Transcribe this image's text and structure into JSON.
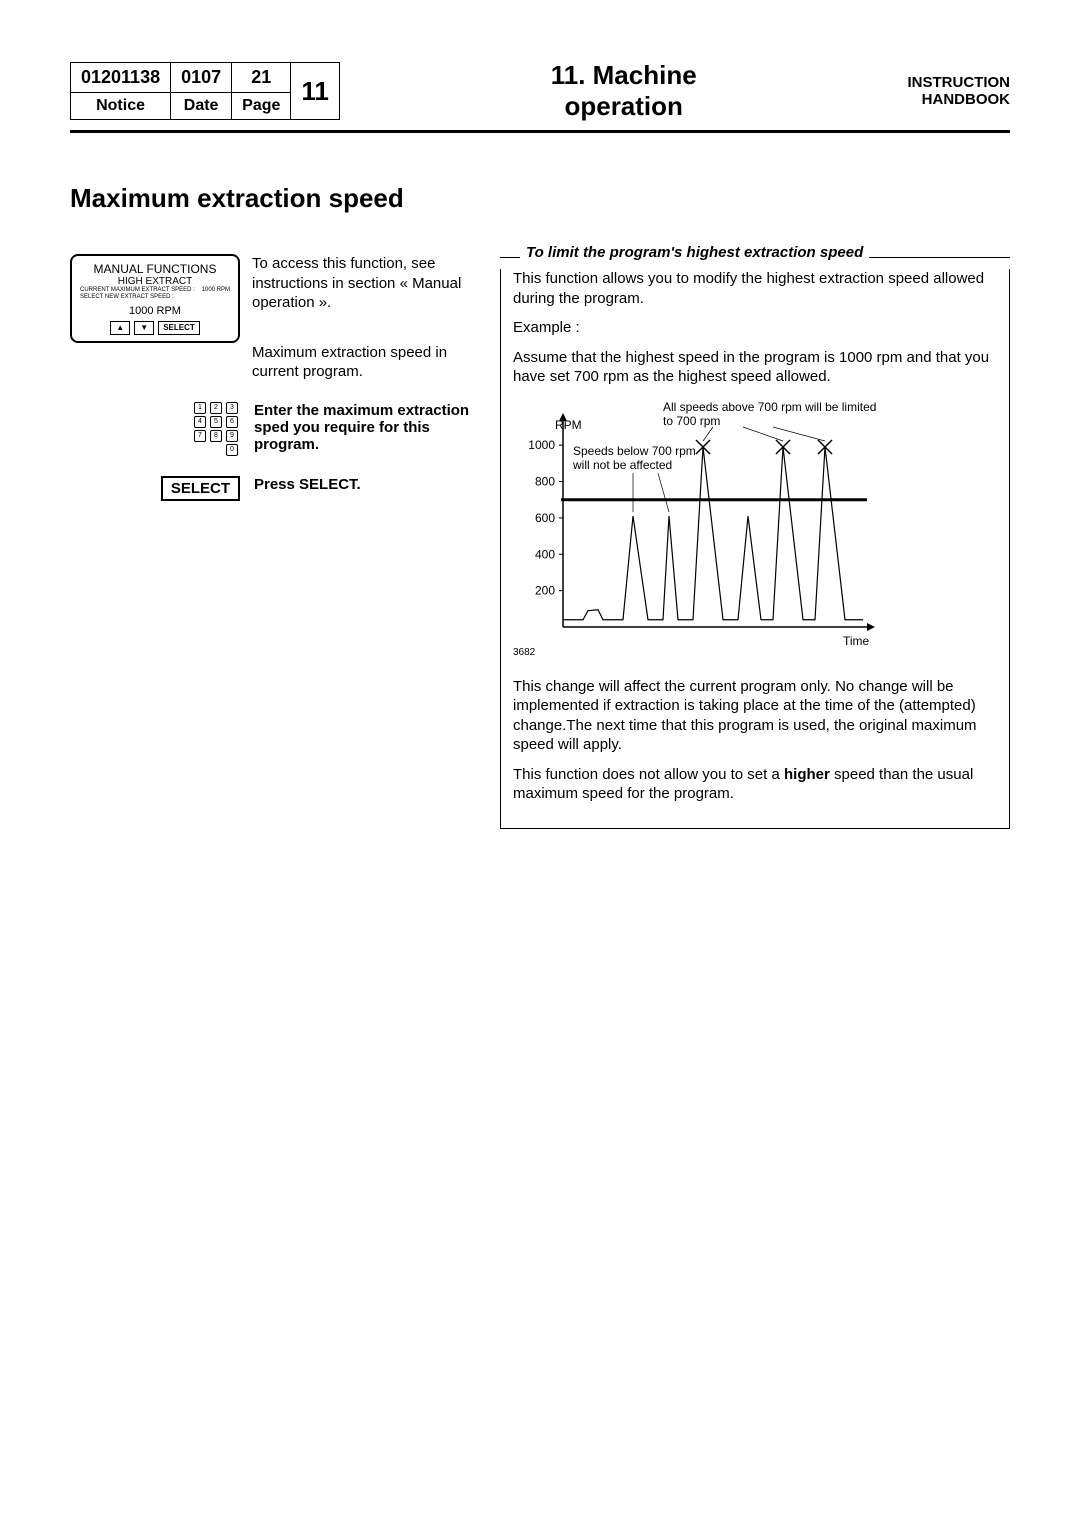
{
  "header": {
    "notice_num": "01201138",
    "date": "0107",
    "page": "21",
    "chapter_num": "11",
    "notice_lbl": "Notice",
    "date_lbl": "Date",
    "page_lbl": "Page",
    "title_line1": "11. Machine",
    "title_line2": "operation",
    "right1": "INSTRUCTION",
    "right2": "HANDBOOK"
  },
  "section_title": "Maximum extraction speed",
  "lcd": {
    "title": "MANUAL FUNCTIONS",
    "sub": "HIGH EXTRACT",
    "line1a": "CURRENT MAXIMUM EXTRACT SPEED :",
    "line1b": "1000 RPM",
    "line2": "SELECT NEW EXTRACT SPEED :",
    "value": "1000 RPM",
    "select": "SELECT"
  },
  "left_p1": "To access this function, see instructions in section « Manual operation ».",
  "left_p2": "Maximum extraction speed in current program.",
  "step2": "Enter the maximum extraction  sped you require  for this program.",
  "select_btn": "SELECT",
  "step3": "Press SELECT.",
  "right": {
    "legend": "To limit the program's highest extraction speed",
    "p1": "This function allows you to modify the highest extraction speed allowed during the program.",
    "p2": "Example :",
    "p3": "Assume that the highest speed in the program is 1000 rpm and that you have set 700 rpm as the highest speed allowed.",
    "p4a": "This change will affect the current program only. No change will be implemented if extraction is taking place at the time of the (attempted) change.The next time that this program is used, the original maximum speed will apply.",
    "p5a": "This function does not allow you to set a ",
    "p5b": "higher",
    "p5c": " speed than the usual maximum speed for the program."
  },
  "chart": {
    "type": "line",
    "ylabel": "RPM",
    "xlabel": "Time",
    "yticks": [
      200,
      400,
      600,
      800,
      1000
    ],
    "ylim": [
      0,
      1100
    ],
    "fig_num": "3682",
    "callout_top": "All speeds above 700 rpm  will be limited to 700 rpm",
    "callout_left": "Speeds below 700 rpm will not be affected",
    "limit_line_y": 700,
    "axis_color": "#000000",
    "line_color": "#000000",
    "limit_color": "#000000",
    "font_size_labels": 12,
    "points": [
      [
        0,
        40
      ],
      [
        20,
        40
      ],
      [
        25,
        90
      ],
      [
        35,
        95
      ],
      [
        40,
        40
      ],
      [
        60,
        40
      ],
      [
        70,
        610
      ],
      [
        85,
        40
      ],
      [
        100,
        40
      ],
      [
        106,
        610
      ],
      [
        115,
        40
      ],
      [
        130,
        40
      ],
      [
        140,
        990
      ],
      [
        160,
        40
      ],
      [
        175,
        40
      ],
      [
        185,
        610
      ],
      [
        198,
        40
      ],
      [
        210,
        40
      ],
      [
        220,
        990
      ],
      [
        240,
        40
      ],
      [
        252,
        40
      ],
      [
        262,
        990
      ],
      [
        282,
        40
      ],
      [
        292,
        40
      ],
      [
        300,
        40
      ]
    ],
    "x_marks": [
      [
        140,
        990
      ],
      [
        220,
        990
      ],
      [
        262,
        990
      ]
    ]
  }
}
